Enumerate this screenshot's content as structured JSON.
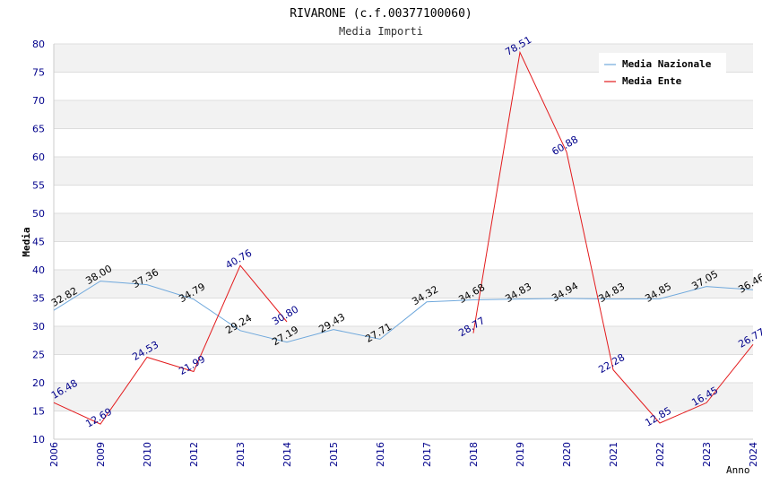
{
  "chart_data": {
    "type": "line",
    "title": "RIVARONE (c.f.00377100060)",
    "subtitle": "Media Importi",
    "xlabel": "Anno",
    "ylabel": "Media",
    "ylim": [
      10,
      80
    ],
    "ytick_step": 5,
    "grid": true,
    "legend_position": "top-right",
    "categories": [
      "2006",
      "2009",
      "2010",
      "2012",
      "2013",
      "2014",
      "2015",
      "2016",
      "2017",
      "2018",
      "2019",
      "2020",
      "2021",
      "2022",
      "2023",
      "2024"
    ],
    "series": [
      {
        "name": "Media Nazionale",
        "color": "#6fa8dc",
        "label_color": "#000000",
        "values": [
          32.82,
          38.0,
          37.36,
          34.79,
          29.24,
          27.19,
          29.43,
          27.71,
          34.32,
          34.68,
          34.83,
          34.94,
          34.83,
          34.85,
          37.05,
          36.46
        ],
        "labels": [
          "32.82",
          "38.00",
          "37.36",
          "34.79",
          "29.24",
          "27.19",
          "29.43",
          "27.71",
          "34.32",
          "34.68",
          "34.83",
          "34.94",
          "34.83",
          "34.85",
          "37.05",
          "36.46"
        ]
      },
      {
        "name": "Media Ente",
        "color": "#e31a1c",
        "label_color": "#00008b",
        "values": [
          16.48,
          12.69,
          24.53,
          21.99,
          40.76,
          30.8,
          null,
          null,
          null,
          28.77,
          78.51,
          60.88,
          22.28,
          12.85,
          16.45,
          26.77
        ],
        "labels": [
          "16.48",
          "12.69",
          "24.53",
          "21.99",
          "40.76",
          "30.80",
          null,
          null,
          null,
          "28.77",
          "78.51",
          "60.88",
          "22.28",
          "12.85",
          "16.45",
          "26.77"
        ]
      }
    ]
  }
}
